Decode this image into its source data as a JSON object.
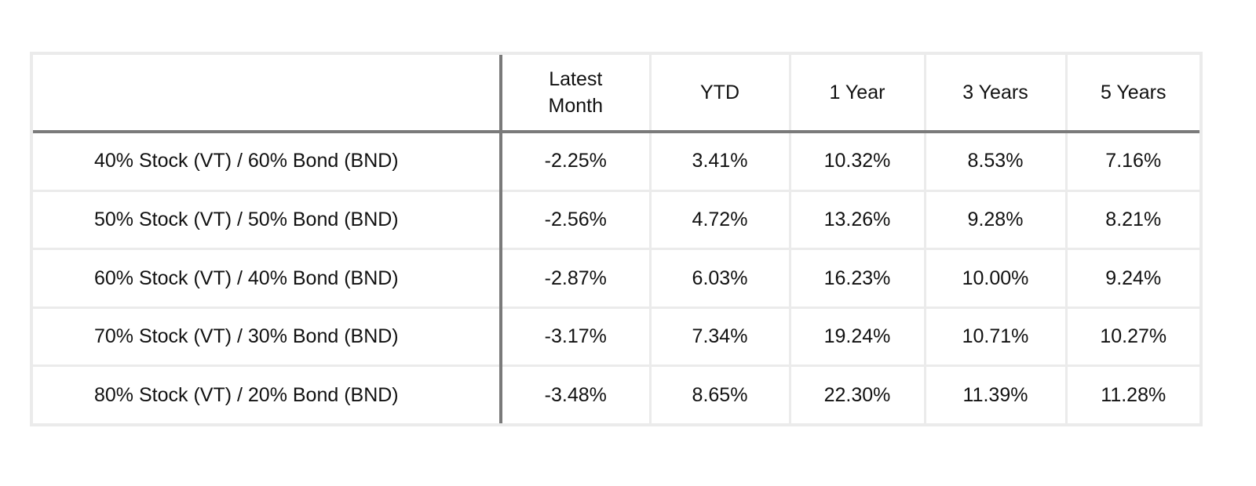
{
  "table": {
    "headers": {
      "name": "",
      "latest_line1": "Latest",
      "latest_line2": "Month",
      "ytd": "YTD",
      "one_year": "1 Year",
      "three_years": "3 Years",
      "five_years": "5 Years"
    },
    "rows": [
      {
        "name": "40% Stock (VT) / 60% Bond (BND)",
        "latest": "-2.25%",
        "ytd": "3.41%",
        "one_year": "10.32%",
        "three_years": "8.53%",
        "five_years": "7.16%"
      },
      {
        "name": "50% Stock (VT) / 50% Bond (BND)",
        "latest": "-2.56%",
        "ytd": "4.72%",
        "one_year": "13.26%",
        "three_years": "9.28%",
        "five_years": "8.21%"
      },
      {
        "name": "60% Stock (VT) / 40% Bond (BND)",
        "latest": "-2.87%",
        "ytd": "6.03%",
        "one_year": "16.23%",
        "three_years": "10.00%",
        "five_years": "9.24%"
      },
      {
        "name": "70% Stock (VT) / 30% Bond (BND)",
        "latest": "-3.17%",
        "ytd": "7.34%",
        "one_year": "19.24%",
        "three_years": "10.71%",
        "five_years": "10.27%"
      },
      {
        "name": "80% Stock (VT) / 20% Bond (BND)",
        "latest": "-3.48%",
        "ytd": "8.65%",
        "one_year": "22.30%",
        "three_years": "11.39%",
        "five_years": "11.28%"
      }
    ]
  }
}
